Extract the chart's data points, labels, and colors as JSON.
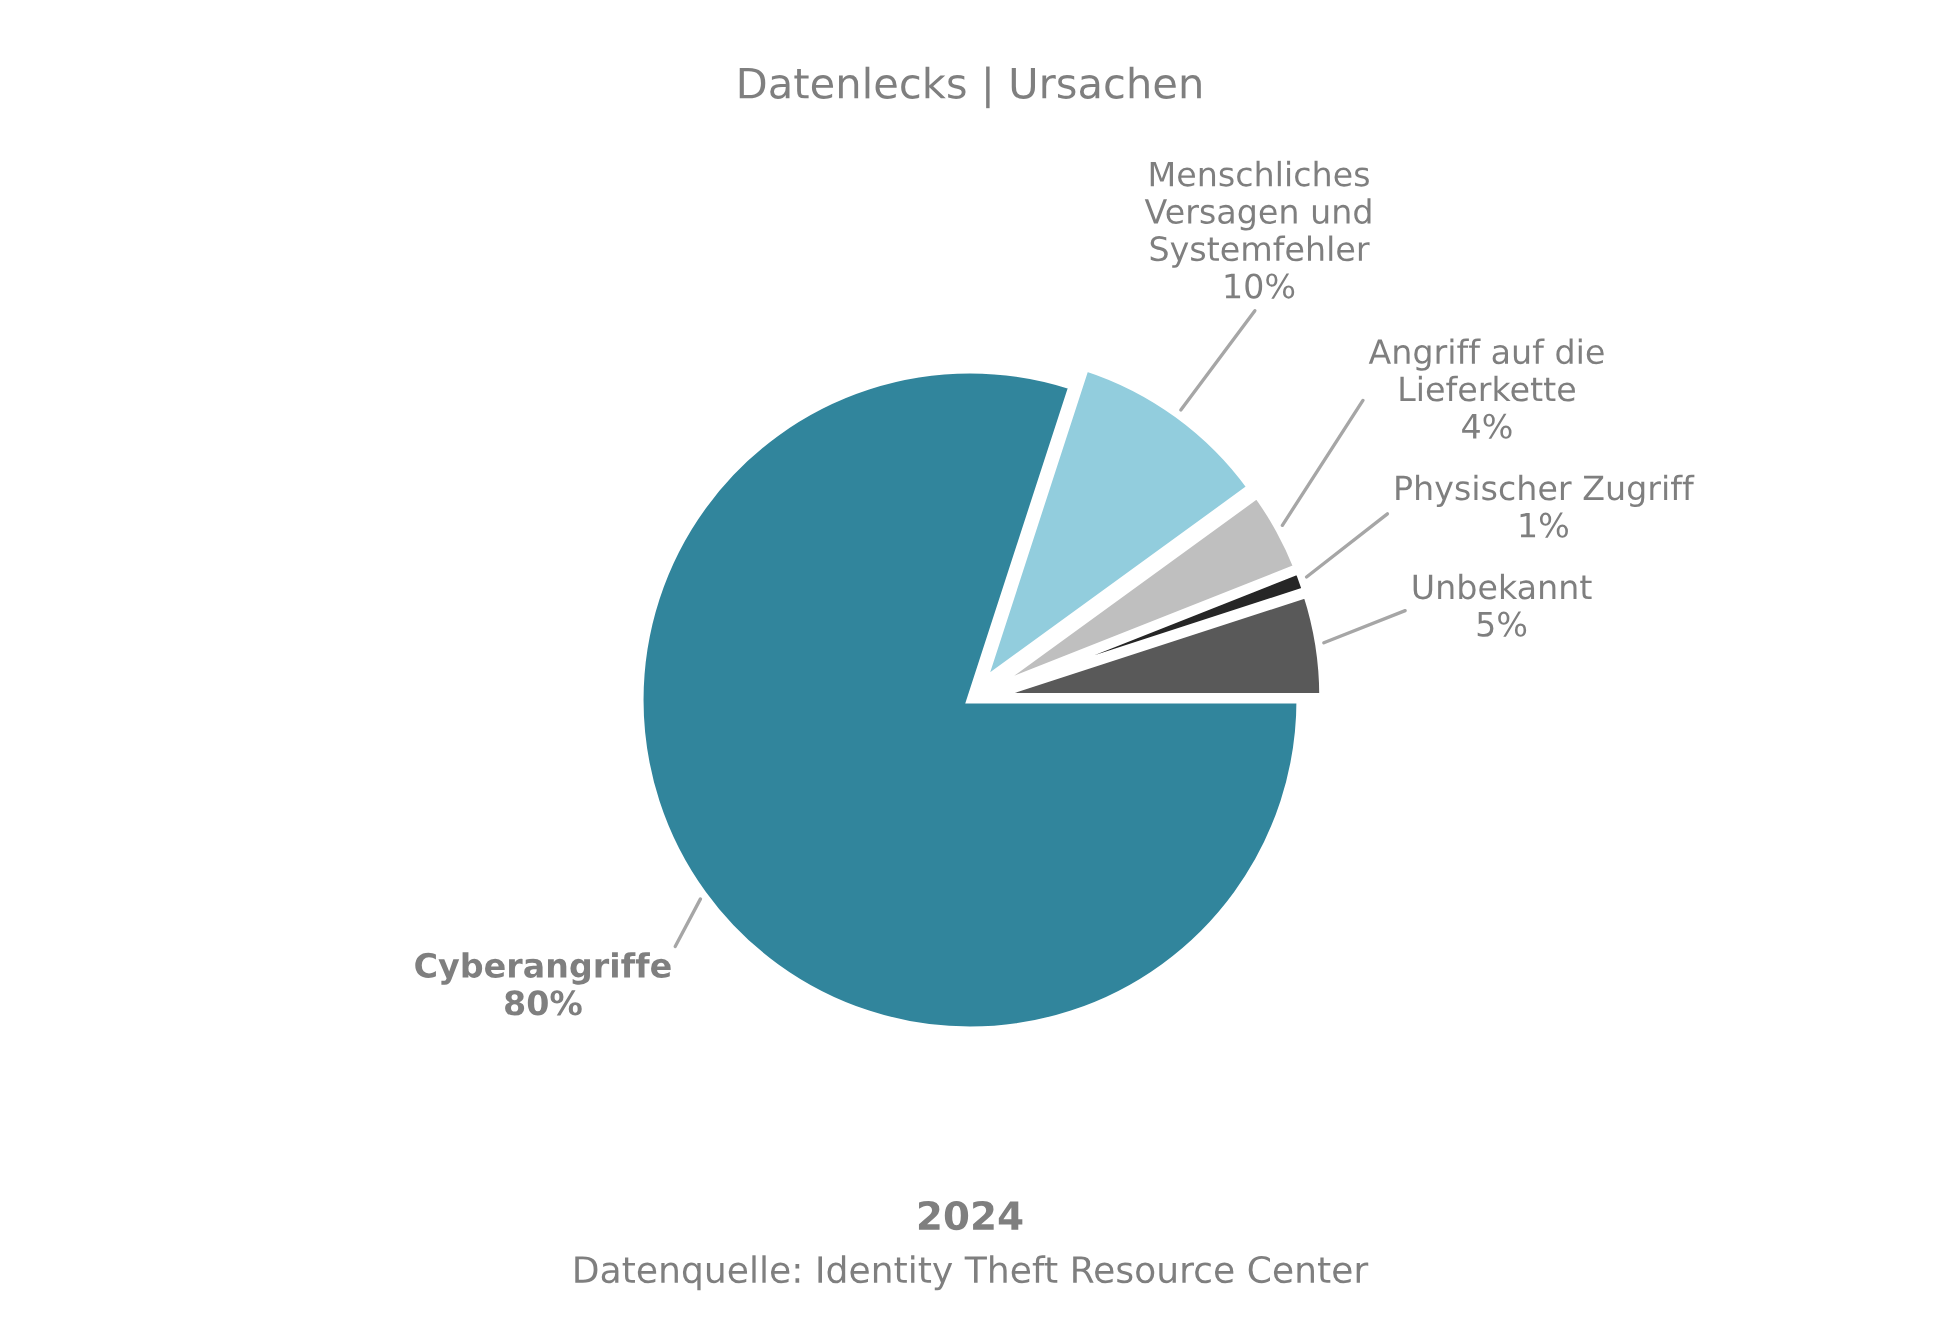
{
  "chart_data": {
    "type": "pie",
    "title": "Datenlecks | Ursachen",
    "subtitle": "2024",
    "categories": [
      "Unbekannt",
      "Physischer Zugriff",
      "Angriff auf die Lieferkette",
      "Menschliches Versagen und Systemfehler",
      "Cyberangriffe"
    ],
    "values": [
      5,
      1,
      4,
      10,
      80
    ],
    "colors": [
      "#595959",
      "#262626",
      "#bfbfbf",
      "#92cddd",
      "#31859c"
    ],
    "value_labels": [
      "5%",
      "1%",
      "4%",
      "10%",
      "80%"
    ],
    "legend": false,
    "annotations": [
      "Datenquelle: Identity Theft Resource Center"
    ]
  }
}
